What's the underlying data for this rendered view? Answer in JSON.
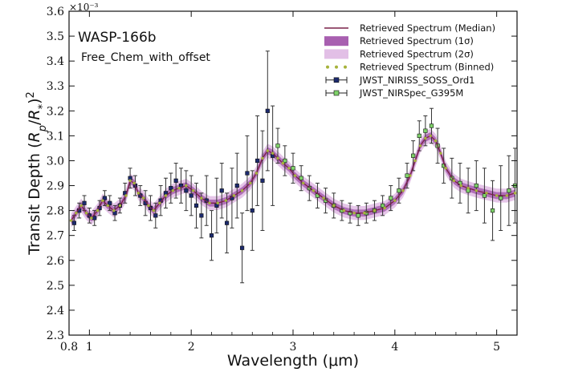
{
  "chart_data": {
    "type": "line",
    "title": "WASP-166b",
    "subtitle": "Free_Chem_with_offset",
    "xlabel": "Wavelength (μm)",
    "ylabel": "Transit Depth (R_p/R_*)^2",
    "y_multiplier": "×10⁻³",
    "xlim": [
      0.8,
      5.2
    ],
    "ylim": [
      2.3,
      3.6
    ],
    "x_ticks": [
      0.8,
      1,
      2,
      3,
      4,
      5
    ],
    "x_tick_labels": [
      "0.8",
      "1",
      "2",
      "3",
      "4",
      "5"
    ],
    "y_ticks": [
      2.3,
      2.4,
      2.5,
      2.6,
      2.7,
      2.8,
      2.9,
      3.0,
      3.1,
      3.2,
      3.3,
      3.4,
      3.5,
      3.6
    ],
    "y_tick_labels": [
      "2.3",
      "2.4",
      "2.5",
      "2.6",
      "2.7",
      "2.8",
      "2.9",
      "3.0",
      "3.1",
      "3.2",
      "3.3",
      "3.4",
      "3.5",
      "3.6"
    ],
    "legend": {
      "position": "top-right",
      "entries": [
        {
          "label": "Retrieved Spectrum (Median)",
          "kind": "line",
          "color": "#7a2048"
        },
        {
          "label": "Retrieved Spectrum (1σ)",
          "kind": "band",
          "color": "#a85fb0"
        },
        {
          "label": "Retrieved Spectrum (2σ)",
          "kind": "band",
          "color": "#e2bfe6"
        },
        {
          "label": "Retrieved Spectrum (Binned)",
          "kind": "dots",
          "color": "#a6b23a"
        },
        {
          "label": "JWST_NIRISS_SOSS_Ord1",
          "kind": "errorbar",
          "color": "#1c2a6e"
        },
        {
          "label": "JWST_NIRSpec_G395M",
          "kind": "errorbar",
          "color": "#3a8a3a"
        }
      ]
    },
    "series": [
      {
        "name": "Retrieved Spectrum (Median)",
        "x": [
          0.82,
          0.87,
          0.92,
          0.97,
          1.02,
          1.08,
          1.13,
          1.18,
          1.24,
          1.3,
          1.36,
          1.4,
          1.44,
          1.48,
          1.53,
          1.58,
          1.63,
          1.69,
          1.75,
          1.82,
          1.88,
          1.95,
          2.02,
          2.1,
          2.18,
          2.26,
          2.34,
          2.42,
          2.5,
          2.58,
          2.64,
          2.7,
          2.75,
          2.8,
          2.85,
          2.9,
          2.96,
          3.02,
          3.1,
          3.2,
          3.3,
          3.4,
          3.5,
          3.6,
          3.7,
          3.8,
          3.9,
          4.0,
          4.08,
          4.15,
          4.2,
          4.25,
          4.3,
          4.35,
          4.4,
          4.45,
          4.5,
          4.58,
          4.65,
          4.72,
          4.8,
          4.9,
          5.0,
          5.1,
          5.18
        ],
        "y": [
          2.76,
          2.79,
          2.82,
          2.79,
          2.77,
          2.8,
          2.84,
          2.82,
          2.8,
          2.82,
          2.86,
          2.92,
          2.91,
          2.87,
          2.85,
          2.82,
          2.8,
          2.83,
          2.86,
          2.88,
          2.89,
          2.9,
          2.88,
          2.85,
          2.83,
          2.83,
          2.84,
          2.86,
          2.88,
          2.91,
          2.95,
          3.01,
          3.04,
          3.03,
          3.01,
          2.99,
          2.97,
          2.94,
          2.91,
          2.88,
          2.85,
          2.82,
          2.8,
          2.79,
          2.79,
          2.8,
          2.81,
          2.84,
          2.88,
          2.94,
          3.0,
          3.06,
          3.09,
          3.1,
          3.08,
          3.03,
          2.97,
          2.92,
          2.9,
          2.89,
          2.88,
          2.87,
          2.86,
          2.86,
          2.87
        ]
      },
      {
        "name": "JWST_NIRISS_SOSS_Ord1",
        "x": [
          0.85,
          0.9,
          0.95,
          1.0,
          1.05,
          1.1,
          1.15,
          1.2,
          1.25,
          1.3,
          1.35,
          1.4,
          1.45,
          1.5,
          1.55,
          1.6,
          1.65,
          1.7,
          1.75,
          1.8,
          1.85,
          1.9,
          1.95,
          2.0,
          2.05,
          2.1,
          2.15,
          2.2,
          2.25,
          2.3,
          2.35,
          2.4,
          2.45,
          2.5,
          2.55,
          2.6,
          2.65,
          2.7,
          2.75,
          2.8
        ],
        "y": [
          2.75,
          2.8,
          2.83,
          2.78,
          2.77,
          2.81,
          2.85,
          2.83,
          2.79,
          2.82,
          2.87,
          2.93,
          2.9,
          2.86,
          2.83,
          2.81,
          2.78,
          2.84,
          2.87,
          2.89,
          2.92,
          2.9,
          2.88,
          2.86,
          2.82,
          2.78,
          2.84,
          2.7,
          2.82,
          2.88,
          2.75,
          2.85,
          2.9,
          2.65,
          2.95,
          2.8,
          3.0,
          2.92,
          3.2,
          3.02
        ],
        "yerr": [
          0.03,
          0.03,
          0.03,
          0.03,
          0.03,
          0.03,
          0.03,
          0.03,
          0.03,
          0.03,
          0.04,
          0.04,
          0.04,
          0.04,
          0.05,
          0.05,
          0.05,
          0.06,
          0.06,
          0.06,
          0.07,
          0.07,
          0.08,
          0.08,
          0.09,
          0.09,
          0.1,
          0.1,
          0.11,
          0.11,
          0.12,
          0.12,
          0.13,
          0.14,
          0.15,
          0.16,
          0.18,
          0.2,
          0.24,
          0.2
        ]
      },
      {
        "name": "JWST_NIRSpec_G395M",
        "x": [
          2.85,
          2.92,
          3.0,
          3.08,
          3.16,
          3.24,
          3.32,
          3.4,
          3.48,
          3.56,
          3.64,
          3.72,
          3.8,
          3.88,
          3.96,
          4.04,
          4.12,
          4.18,
          4.24,
          4.3,
          4.36,
          4.42,
          4.48,
          4.56,
          4.64,
          4.72,
          4.8,
          4.88,
          4.96,
          5.04,
          5.12,
          5.18
        ],
        "y": [
          3.06,
          3.0,
          2.97,
          2.93,
          2.89,
          2.86,
          2.84,
          2.82,
          2.8,
          2.79,
          2.78,
          2.79,
          2.8,
          2.82,
          2.85,
          2.88,
          2.94,
          3.02,
          3.1,
          3.12,
          3.14,
          3.06,
          2.98,
          2.93,
          2.91,
          2.88,
          2.9,
          2.86,
          2.8,
          2.85,
          2.88,
          2.9
        ],
        "yerr": [
          0.07,
          0.06,
          0.06,
          0.05,
          0.05,
          0.05,
          0.05,
          0.05,
          0.04,
          0.04,
          0.04,
          0.04,
          0.04,
          0.04,
          0.05,
          0.05,
          0.05,
          0.06,
          0.06,
          0.06,
          0.07,
          0.07,
          0.07,
          0.08,
          0.08,
          0.09,
          0.1,
          0.11,
          0.12,
          0.13,
          0.14,
          0.15
        ]
      }
    ]
  }
}
